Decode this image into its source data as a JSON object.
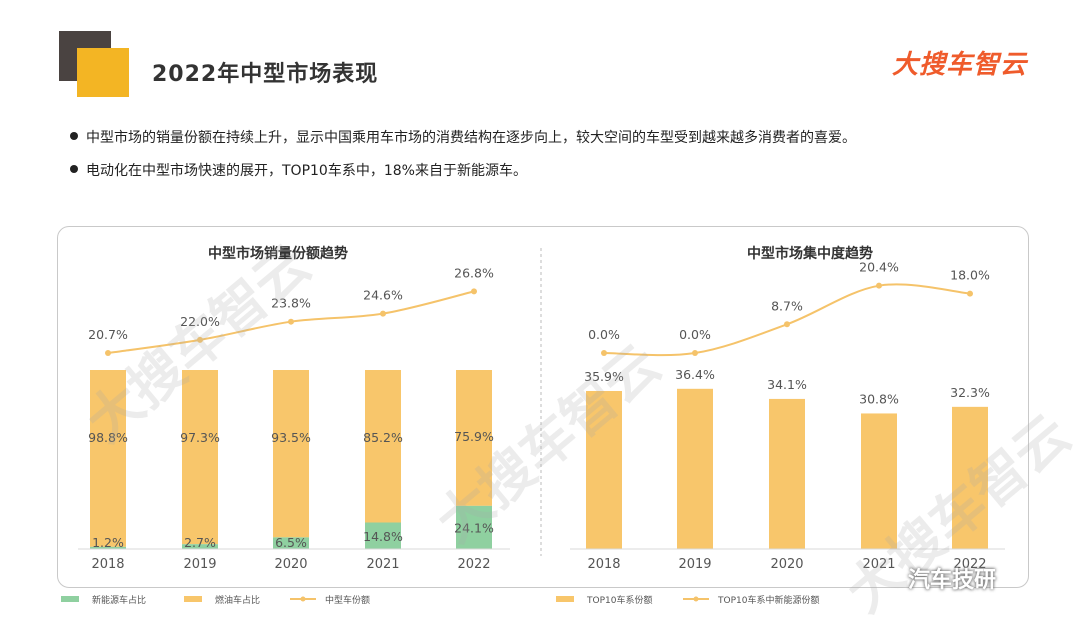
{
  "header": {
    "title": "2022年中型市场表现",
    "brand": "大搜车智云"
  },
  "bullets": [
    "中型市场的销量份额在持续上升，显示中国乘用车市场的消费结构在逐步向上，较大空间的车型受到越来越多消费者的喜爱。",
    "电动化在中型市场快速的展开，TOP10车系中，18%来自于新能源车。"
  ],
  "watermark": "大搜车智云",
  "footer": {
    "wechat": "汽车技研"
  },
  "colors": {
    "bar_gold": "#f8c66b",
    "bar_green": "#8fd0a0",
    "line": "#f5c36a",
    "accent": "#ef5b2b"
  },
  "chart_data": [
    {
      "type": "bar",
      "title": "中型市场销量份额趋势",
      "categories": [
        "2018",
        "2019",
        "2020",
        "2021",
        "2022"
      ],
      "stacked": true,
      "series": [
        {
          "name": "新能源车占比",
          "values": [
            1.2,
            2.7,
            6.5,
            14.8,
            24.1
          ],
          "labels": [
            "1.2%",
            "2.7%",
            "6.5%",
            "14.8%",
            "24.1%"
          ]
        },
        {
          "name": "燃油车占比",
          "values": [
            98.8,
            97.3,
            93.5,
            85.2,
            75.9
          ],
          "labels": [
            "98.8%",
            "97.3%",
            "93.5%",
            "85.2%",
            "75.9%"
          ]
        },
        {
          "name": "中型车份额",
          "type": "line",
          "values": [
            20.7,
            22.0,
            23.8,
            24.6,
            26.8
          ],
          "labels": [
            "20.7%",
            "22.0%",
            "23.8%",
            "24.6%",
            "26.8%"
          ]
        }
      ]
    },
    {
      "type": "bar",
      "title": "中型市场集中度趋势",
      "categories": [
        "2018",
        "2019",
        "2020",
        "2021",
        "2022"
      ],
      "series": [
        {
          "name": "TOP10车系份额",
          "values": [
            35.9,
            36.4,
            34.1,
            30.8,
            32.3
          ],
          "labels": [
            "35.9%",
            "36.4%",
            "34.1%",
            "30.8%",
            "32.3%"
          ]
        },
        {
          "name": "TOP10车系中新能源份额",
          "type": "line",
          "values": [
            0.0,
            0.0,
            8.7,
            20.4,
            18.0
          ],
          "labels": [
            "0.0%",
            "0.0%",
            "8.7%",
            "20.4%",
            "18.0%"
          ]
        }
      ]
    }
  ]
}
